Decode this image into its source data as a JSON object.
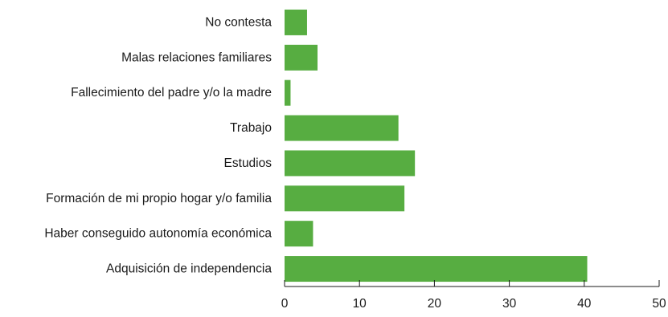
{
  "chart_data": {
    "type": "bar",
    "orientation": "horizontal",
    "title": "",
    "xlabel": "",
    "ylabel": "",
    "categories": [
      "No contesta",
      "Malas relaciones familiares",
      "Fallecimiento del padre y/o la madre",
      "Trabajo",
      "Estudios",
      "Formación de mi propio hogar y/o familia",
      "Haber conseguido autonomía económica",
      "Adquisición de independencia"
    ],
    "values": [
      3.0,
      4.4,
      0.8,
      15.2,
      17.4,
      16.0,
      3.8,
      40.4
    ],
    "xlim": [
      0,
      50
    ],
    "xticks": [
      0,
      10,
      20,
      30,
      40,
      50
    ],
    "grid": false,
    "legend": "none",
    "bar_color": "#57ad41"
  }
}
